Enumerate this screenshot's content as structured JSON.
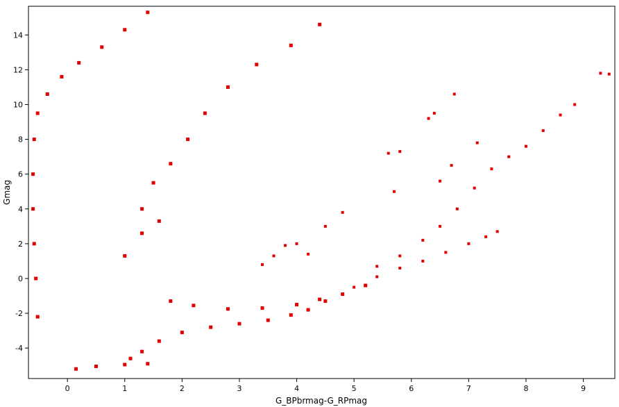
{
  "chart_data": {
    "type": "scatter",
    "xlabel": "G_BPbrmag-G_RPmag",
    "ylabel": "Gmag",
    "xlim": [
      -0.68,
      9.55
    ],
    "ylim": [
      15.65,
      -5.75
    ],
    "y_inverted": true,
    "grid": false,
    "legend": "none",
    "x_ticks": [
      0,
      1,
      2,
      3,
      4,
      5,
      6,
      7,
      8,
      9
    ],
    "y_ticks": [
      -4,
      -2,
      0,
      2,
      4,
      6,
      8,
      10,
      12,
      14
    ],
    "point_color": "#e00000",
    "dense_color": "#5a0000",
    "features": [
      {
        "name": "bright-blue-band",
        "points": [
          [
            0.15,
            -5.2
          ],
          [
            0.5,
            -5.05
          ],
          [
            1.0,
            -4.95
          ],
          [
            1.4,
            -4.9
          ]
        ]
      },
      {
        "name": "giant-branch-top",
        "points": [
          [
            1.1,
            -4.6
          ],
          [
            1.3,
            -4.2
          ],
          [
            1.6,
            -3.6
          ],
          [
            2.0,
            -3.1
          ],
          [
            2.5,
            -2.8
          ],
          [
            3.0,
            -2.6
          ],
          [
            3.5,
            -2.4
          ],
          [
            3.9,
            -2.1
          ],
          [
            4.2,
            -1.8
          ],
          [
            4.5,
            -1.3
          ],
          [
            4.8,
            -0.9
          ],
          [
            5.2,
            -0.4
          ]
        ]
      },
      {
        "name": "giant-branch-bottom",
        "points": [
          [
            1.8,
            -1.3
          ],
          [
            2.2,
            -1.55
          ],
          [
            2.8,
            -1.75
          ],
          [
            3.4,
            -1.7
          ],
          [
            4.0,
            -1.5
          ],
          [
            4.4,
            -1.2
          ]
        ]
      },
      {
        "name": "upper-sequence",
        "points": [
          [
            5.0,
            -0.5
          ],
          [
            5.4,
            0.1
          ],
          [
            5.8,
            0.6
          ],
          [
            6.2,
            1.0
          ],
          [
            6.6,
            1.5
          ],
          [
            7.0,
            2.0
          ],
          [
            7.3,
            2.4
          ],
          [
            7.5,
            2.7
          ]
        ]
      },
      {
        "name": "lower-sequence",
        "points": [
          [
            5.4,
            0.7
          ],
          [
            5.8,
            1.3
          ],
          [
            6.2,
            2.2
          ],
          [
            6.5,
            3.0
          ],
          [
            6.8,
            4.0
          ],
          [
            7.1,
            5.2
          ],
          [
            7.4,
            6.3
          ],
          [
            7.7,
            7.0
          ],
          [
            8.0,
            7.6
          ],
          [
            8.3,
            8.5
          ],
          [
            8.6,
            9.4
          ],
          [
            8.85,
            10.0
          ]
        ]
      },
      {
        "name": "outliers",
        "points": [
          [
            3.4,
            0.8
          ],
          [
            3.6,
            1.3
          ],
          [
            3.8,
            1.9
          ],
          [
            4.0,
            2.0
          ],
          [
            4.2,
            1.4
          ],
          [
            4.5,
            3.0
          ],
          [
            4.8,
            3.8
          ],
          [
            5.7,
            5.0
          ],
          [
            5.8,
            7.3
          ],
          [
            5.6,
            7.2
          ],
          [
            6.5,
            5.6
          ],
          [
            6.7,
            6.5
          ],
          [
            6.3,
            9.2
          ],
          [
            6.4,
            9.5
          ],
          [
            6.75,
            10.6
          ],
          [
            7.15,
            7.8
          ],
          [
            9.3,
            11.8
          ],
          [
            9.45,
            11.75
          ]
        ]
      },
      {
        "name": "white-dwarf-sequence",
        "points": [
          [
            -0.52,
            -2.2
          ],
          [
            -0.55,
            0.0
          ],
          [
            -0.58,
            2.0
          ],
          [
            -0.6,
            4.0
          ],
          [
            -0.6,
            6.0
          ],
          [
            -0.58,
            8.0
          ],
          [
            -0.52,
            9.5
          ],
          [
            -0.35,
            10.6
          ],
          [
            -0.1,
            11.6
          ],
          [
            0.2,
            12.4
          ],
          [
            0.6,
            13.3
          ],
          [
            1.0,
            14.3
          ],
          [
            1.4,
            15.3
          ]
        ]
      },
      {
        "name": "main-sequence",
        "points": [
          [
            1.0,
            1.3
          ],
          [
            1.3,
            2.6
          ],
          [
            1.6,
            3.3
          ],
          [
            1.3,
            4.0
          ],
          [
            1.5,
            5.5
          ],
          [
            1.8,
            6.6
          ],
          [
            2.1,
            8.0
          ],
          [
            2.4,
            9.5
          ],
          [
            2.8,
            11.0
          ],
          [
            3.3,
            12.3
          ],
          [
            3.9,
            13.4
          ],
          [
            4.4,
            14.6
          ]
        ]
      }
    ]
  }
}
